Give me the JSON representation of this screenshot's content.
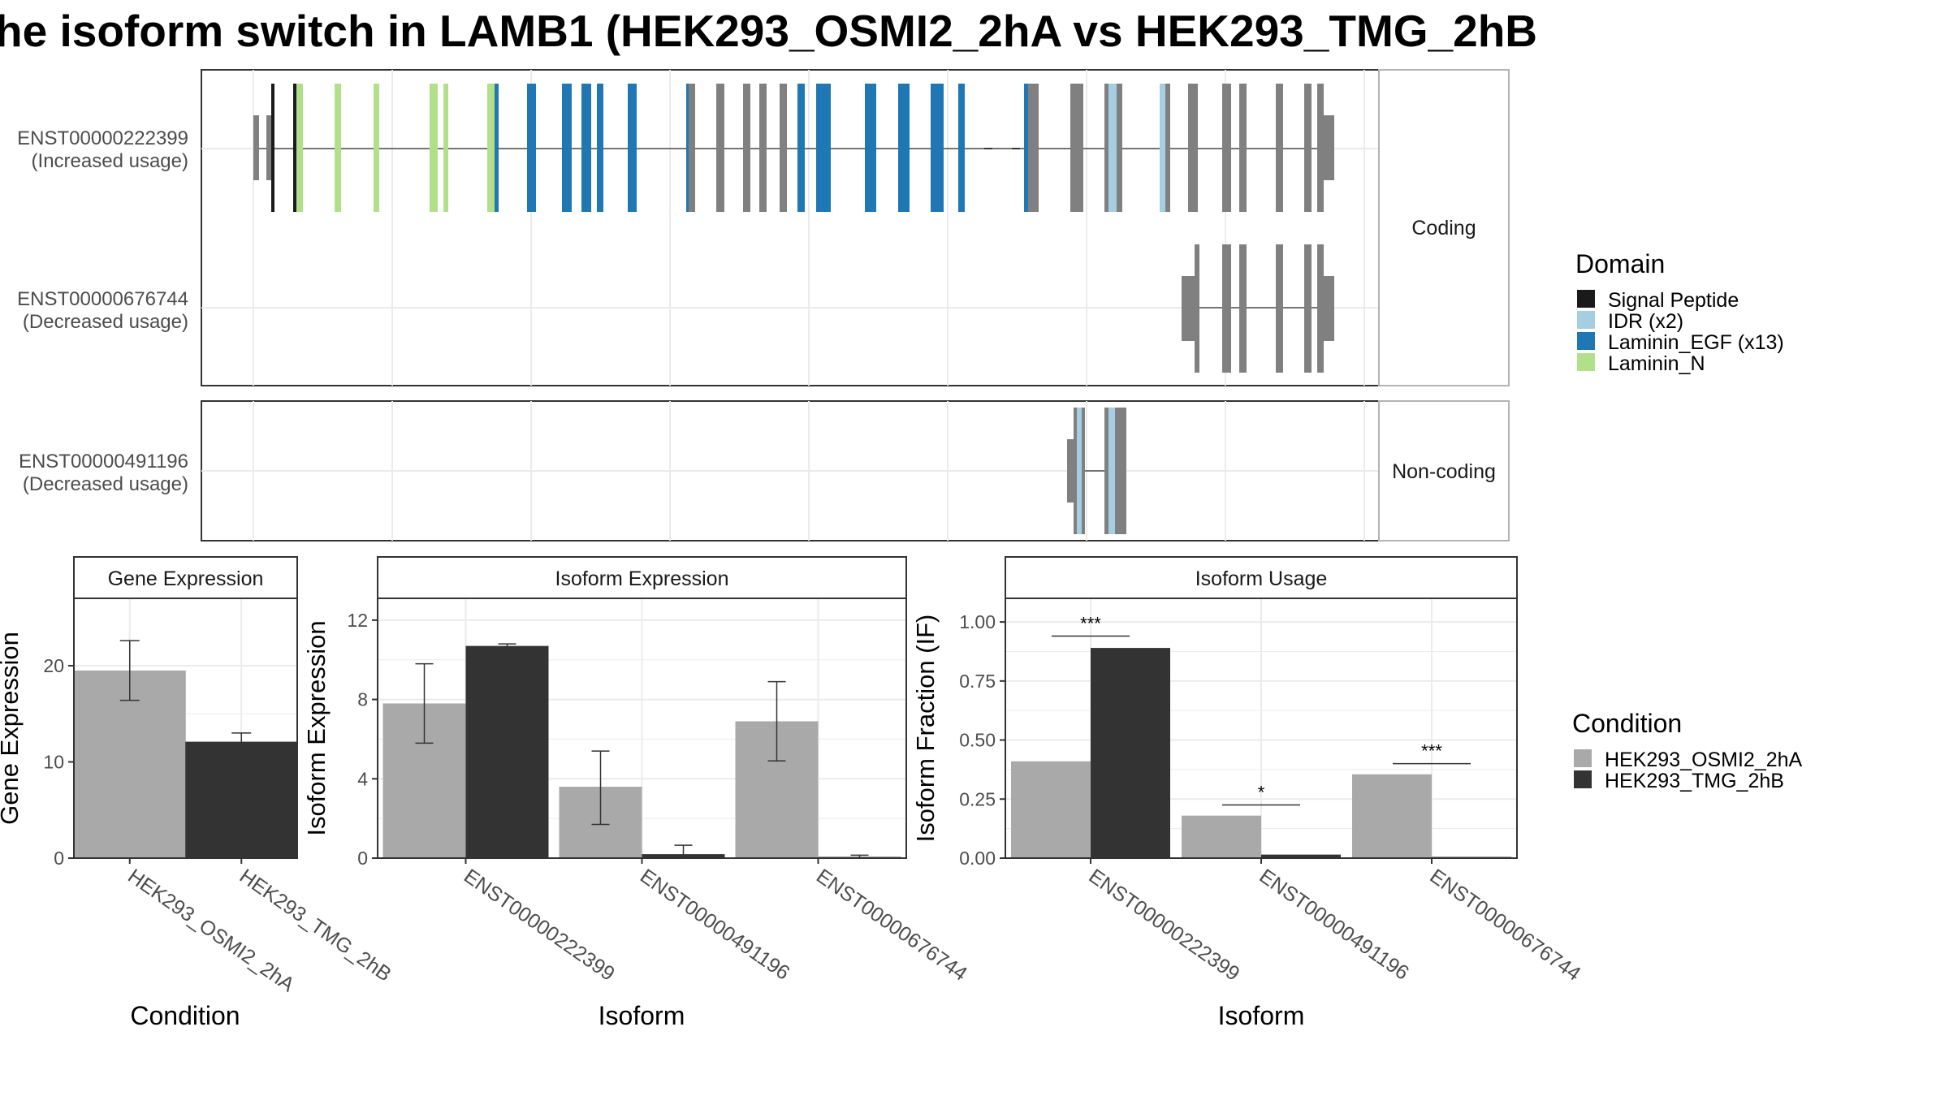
{
  "title": "he isoform switch in LAMB1 (HEK293_OSMI2_2hA vs HEK293_TMG_2hB",
  "colors": {
    "signal_peptide": "#1a1a1a",
    "idr": "#a6cee3",
    "laminin_egf": "#1f78b4",
    "laminin_n": "#b2df8a",
    "exon_grey": "#808080",
    "cond_a": "#a9a9a9",
    "cond_b": "#333333"
  },
  "structure": {
    "panels": [
      {
        "strip": "Coding",
        "isoforms": [
          {
            "id": "ENST00000222399",
            "usage": "(Increased usage)"
          },
          {
            "id": "ENST00000676744",
            "usage": "(Decreased usage)"
          }
        ]
      },
      {
        "strip": "Non-coding",
        "isoforms": [
          {
            "id": "ENST00000491196",
            "usage": "(Decreased usage)"
          }
        ]
      }
    ]
  },
  "domain_legend": {
    "title": "Domain",
    "items": [
      {
        "label": "Signal Peptide",
        "color": "#1a1a1a"
      },
      {
        "label": "IDR (x2)",
        "color": "#a6cee3"
      },
      {
        "label": "Laminin_EGF (x13)",
        "color": "#1f78b4"
      },
      {
        "label": "Laminin_N",
        "color": "#b2df8a"
      }
    ]
  },
  "condition_legend": {
    "title": "Condition",
    "items": [
      {
        "label": "HEK293_OSMI2_2hA",
        "color": "#a9a9a9"
      },
      {
        "label": "HEK293_TMG_2hB",
        "color": "#333333"
      }
    ]
  },
  "chart_data": [
    {
      "type": "bar",
      "title": "Gene Expression",
      "xlabel": "Condition",
      "ylabel": "Gene Expression",
      "categories": [
        "HEK293_OSMI2_2hA",
        "HEK293_TMG_2hB"
      ],
      "ylim": [
        0,
        27
      ],
      "yticks": [
        0,
        10,
        20
      ],
      "ytick_labels": [
        "0",
        "10",
        "20"
      ],
      "bars": [
        {
          "category": "HEK293_OSMI2_2hA",
          "condition": "HEK293_OSMI2_2hA",
          "value": 19.5,
          "err_low": 16.4,
          "err_high": 22.6
        },
        {
          "category": "HEK293_TMG_2hB",
          "condition": "HEK293_TMG_2hB",
          "value": 12.1,
          "err_low": 11.1,
          "err_high": 13.0
        }
      ]
    },
    {
      "type": "bar",
      "title": "Isoform Expression",
      "xlabel": "Isoform",
      "ylabel": "Isoform Expression",
      "categories": [
        "ENST00000222399",
        "ENST00000491196",
        "ENST00000676744"
      ],
      "ylim": [
        0,
        13.1
      ],
      "yticks": [
        0,
        4,
        8,
        12
      ],
      "ytick_labels": [
        "0",
        "4",
        "8",
        "12"
      ],
      "series": [
        {
          "name": "HEK293_OSMI2_2hA",
          "values": [
            7.8,
            3.6,
            6.9
          ],
          "err_low": [
            5.8,
            1.7,
            4.9
          ],
          "err_high": [
            9.8,
            5.4,
            8.9
          ]
        },
        {
          "name": "HEK293_TMG_2hB",
          "values": [
            10.7,
            0.2,
            0.05
          ],
          "err_low": [
            10.6,
            0.0,
            0.0
          ],
          "err_high": [
            10.8,
            0.65,
            0.15
          ]
        }
      ]
    },
    {
      "type": "bar",
      "title": "Isoform Usage",
      "xlabel": "Isoform",
      "ylabel": "Isoform Fraction (IF)",
      "categories": [
        "ENST00000222399",
        "ENST00000491196",
        "ENST00000676744"
      ],
      "ylim": [
        0,
        1.1
      ],
      "yticks": [
        0,
        0.25,
        0.5,
        0.75,
        1.0
      ],
      "ytick_labels": [
        "0.00",
        "0.25",
        "0.50",
        "0.75",
        "1.00"
      ],
      "series": [
        {
          "name": "HEK293_OSMI2_2hA",
          "values": [
            0.41,
            0.18,
            0.355
          ]
        },
        {
          "name": "HEK293_TMG_2hB",
          "values": [
            0.89,
            0.015,
            0.005
          ]
        }
      ],
      "significance": [
        {
          "category": "ENST00000222399",
          "label": "***",
          "y": 0.94
        },
        {
          "category": "ENST00000491196",
          "label": "*",
          "y": 0.225
        },
        {
          "category": "ENST00000676744",
          "label": "***",
          "y": 0.4
        }
      ]
    }
  ]
}
